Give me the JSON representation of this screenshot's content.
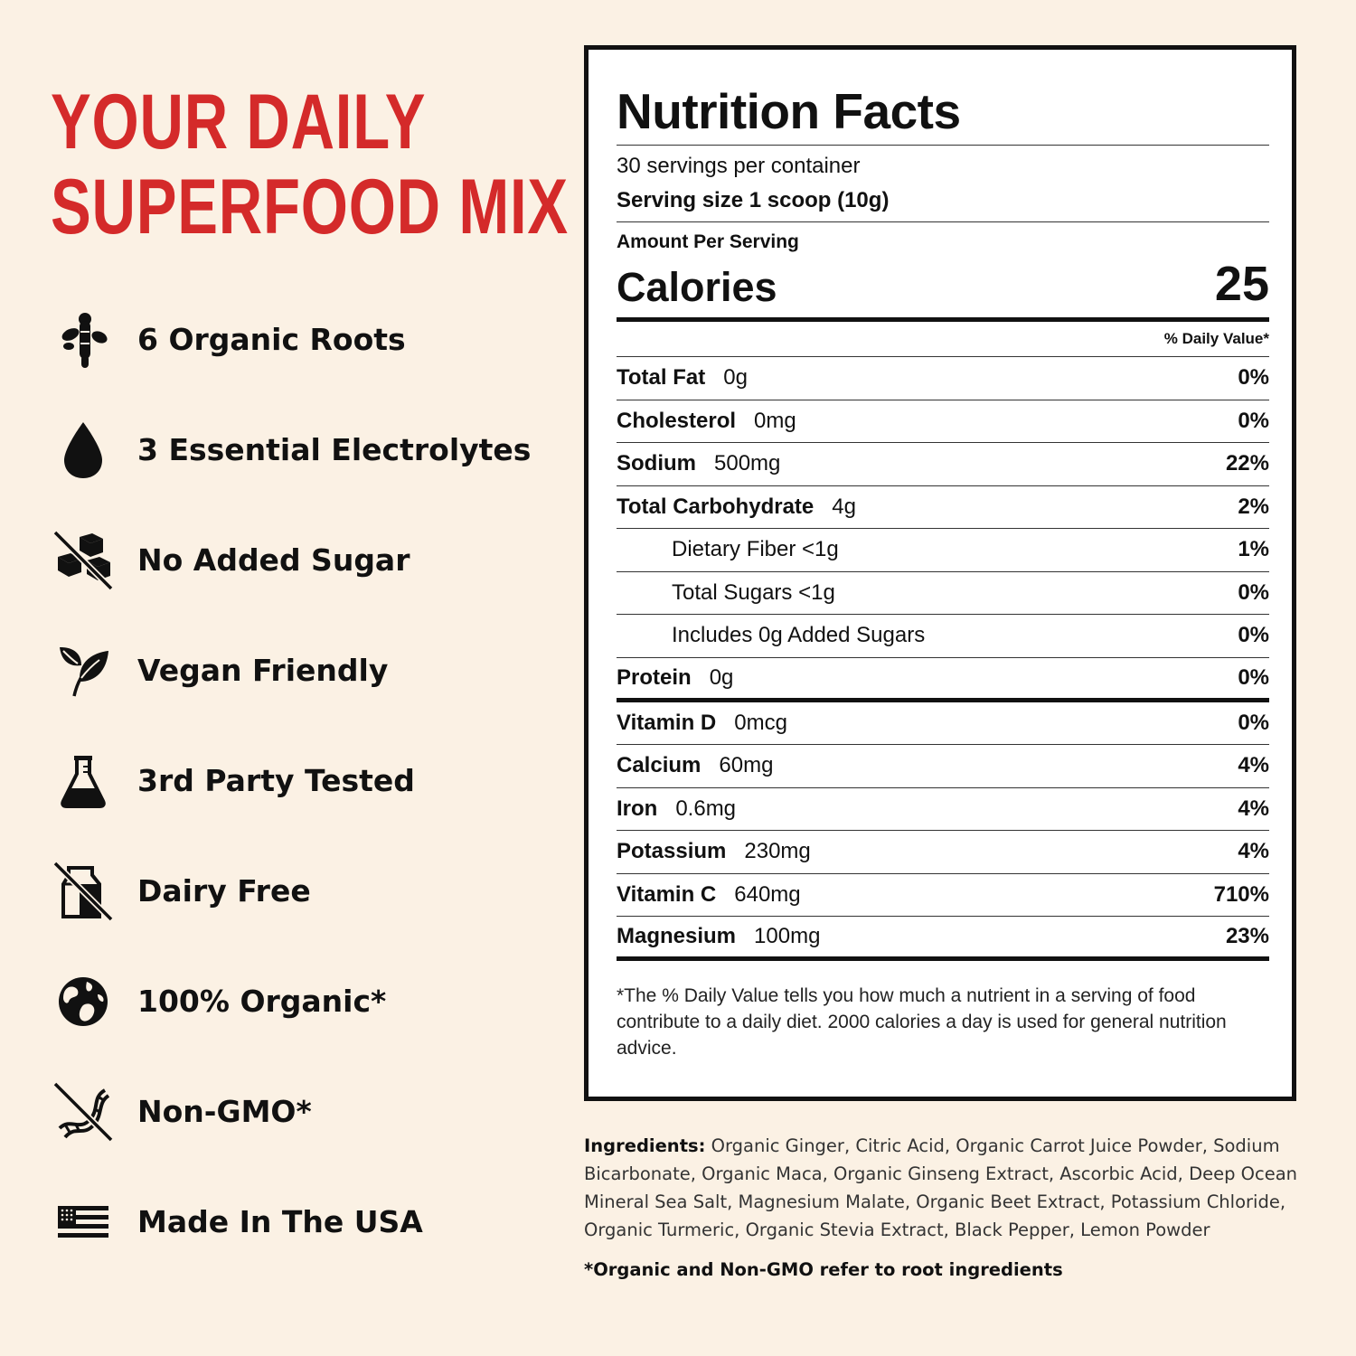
{
  "headline": {
    "line1": "YOUR DAILY",
    "line2": "SUPERFOOD MIX",
    "color": "#d42a2a"
  },
  "features": [
    {
      "icon": "ginger-root-icon",
      "label": "6 Organic Roots"
    },
    {
      "icon": "water-drop-icon",
      "label": "3 Essential Electrolytes"
    },
    {
      "icon": "no-sugar-cubes-icon",
      "label": "No Added Sugar"
    },
    {
      "icon": "leaves-icon",
      "label": "Vegan Friendly"
    },
    {
      "icon": "lab-flask-icon",
      "label": "3rd Party Tested"
    },
    {
      "icon": "no-milk-carton-icon",
      "label": "Dairy Free"
    },
    {
      "icon": "globe-icon",
      "label": "100% Organic*"
    },
    {
      "icon": "no-dna-icon",
      "label": "Non-GMO*"
    },
    {
      "icon": "usa-flag-icon",
      "label": "Made In The USA"
    }
  ],
  "nutrition": {
    "title": "Nutrition Facts",
    "servings": "30 servings per container",
    "serving_size": "Serving size 1 scoop (10g)",
    "amount_per_serving": "Amount Per Serving",
    "calories_label": "Calories",
    "calories_value": "25",
    "dv_header": "% Daily Value*",
    "rows": [
      {
        "name": "Total Fat",
        "amount": "0g",
        "dv": "0%"
      },
      {
        "name": "Cholesterol",
        "amount": "0mg",
        "dv": "0%"
      },
      {
        "name": "Sodium",
        "amount": "500mg",
        "dv": "22%"
      },
      {
        "name": "Total Carbohydrate",
        "amount": "4g",
        "dv": "2%"
      },
      {
        "name": "Dietary Fiber <1g",
        "amount": "",
        "dv": "1%"
      },
      {
        "name": "Total Sugars <1g",
        "amount": "",
        "dv": "0%"
      },
      {
        "name": "Includes 0g Added Sugars",
        "amount": "",
        "dv": "0%"
      },
      {
        "name": "Protein",
        "amount": "0g",
        "dv": "0%"
      },
      {
        "name": "Vitamin D",
        "amount": "0mcg",
        "dv": "0%"
      },
      {
        "name": "Calcium",
        "amount": "60mg",
        "dv": "4%"
      },
      {
        "name": "Iron",
        "amount": "0.6mg",
        "dv": "4%"
      },
      {
        "name": "Potassium",
        "amount": "230mg",
        "dv": "4%"
      },
      {
        "name": "Vitamin C",
        "amount": "640mg",
        "dv": "710%"
      },
      {
        "name": "Magnesium",
        "amount": "100mg",
        "dv": "23%"
      }
    ],
    "footnote": "*The % Daily Value tells you how much a nutrient in a serving of food contribute to a daily diet. 2000 calories a day is used for general nutrition advice."
  },
  "ingredients": {
    "label": "Ingredients:",
    "text": " Organic Ginger, Citric Acid, Organic Carrot Juice Powder, Sodium Bicarbonate, Organic Maca, Organic Ginseng Extract, Ascorbic Acid, Deep Ocean Mineral Sea Salt, Magnesium Malate, Organic Beet Extract, Potassium Chloride, Organic Turmeric,  Organic Stevia Extract, Black Pepper, Lemon Powder"
  },
  "organic_note": "*Organic and Non-GMO refer to root ingredients"
}
